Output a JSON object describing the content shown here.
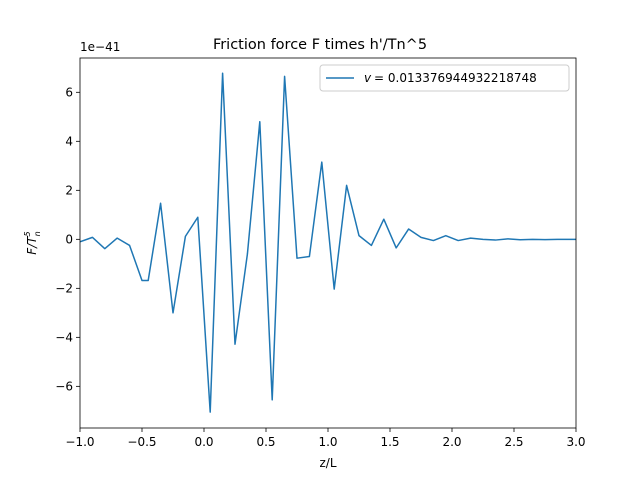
{
  "chart_data": {
    "type": "line",
    "title": "Friction force F times h'/Tn^5",
    "xlabel": "z/L",
    "ylabel": "F/T_n^5",
    "y_scale_label": "1e−41",
    "xlim": [
      -1.0,
      3.0
    ],
    "ylim": [
      -7.7,
      7.4
    ],
    "xticks": [
      -1.0,
      -0.5,
      0.0,
      0.5,
      1.0,
      1.5,
      2.0,
      2.5,
      3.0
    ],
    "xtick_labels": [
      "−1.0",
      "−0.5",
      "0.0",
      "0.5",
      "1.0",
      "1.5",
      "2.0",
      "2.5",
      "3.0"
    ],
    "yticks": [
      -6,
      -4,
      -2,
      0,
      2,
      4,
      6
    ],
    "ytick_labels": [
      "−6",
      "−4",
      "−2",
      "0",
      "2",
      "4",
      "6"
    ],
    "grid": false,
    "legend_position": "top-right",
    "series": [
      {
        "name": "v = 0.013376944932218748",
        "legend_label": "= 0.013376944932218748",
        "color": "#1f77b4",
        "x": [
          -1.0,
          -0.9,
          -0.8,
          -0.7,
          -0.6,
          -0.5,
          -0.45,
          -0.35,
          -0.25,
          -0.15,
          -0.05,
          0.05,
          0.15,
          0.25,
          0.35,
          0.45,
          0.55,
          0.65,
          0.75,
          0.85,
          0.95,
          1.05,
          1.15,
          1.25,
          1.35,
          1.45,
          1.55,
          1.65,
          1.75,
          1.85,
          1.95,
          2.05,
          2.15,
          2.25,
          2.35,
          2.45,
          2.55,
          2.65,
          2.75,
          2.85,
          2.95,
          3.0
        ],
        "y": [
          -0.1,
          0.08,
          -0.38,
          0.05,
          -0.25,
          -1.68,
          -1.68,
          1.47,
          -3.0,
          0.12,
          0.9,
          -7.05,
          6.78,
          -4.28,
          -0.6,
          4.8,
          -6.55,
          6.65,
          -0.77,
          -0.7,
          3.15,
          -2.03,
          2.2,
          0.15,
          -0.25,
          0.82,
          -0.35,
          0.42,
          0.08,
          -0.05,
          0.15,
          -0.05,
          0.05,
          0.0,
          -0.03,
          0.02,
          -0.02,
          0.0,
          -0.01,
          0.0,
          0.0,
          0.0
        ]
      }
    ]
  }
}
